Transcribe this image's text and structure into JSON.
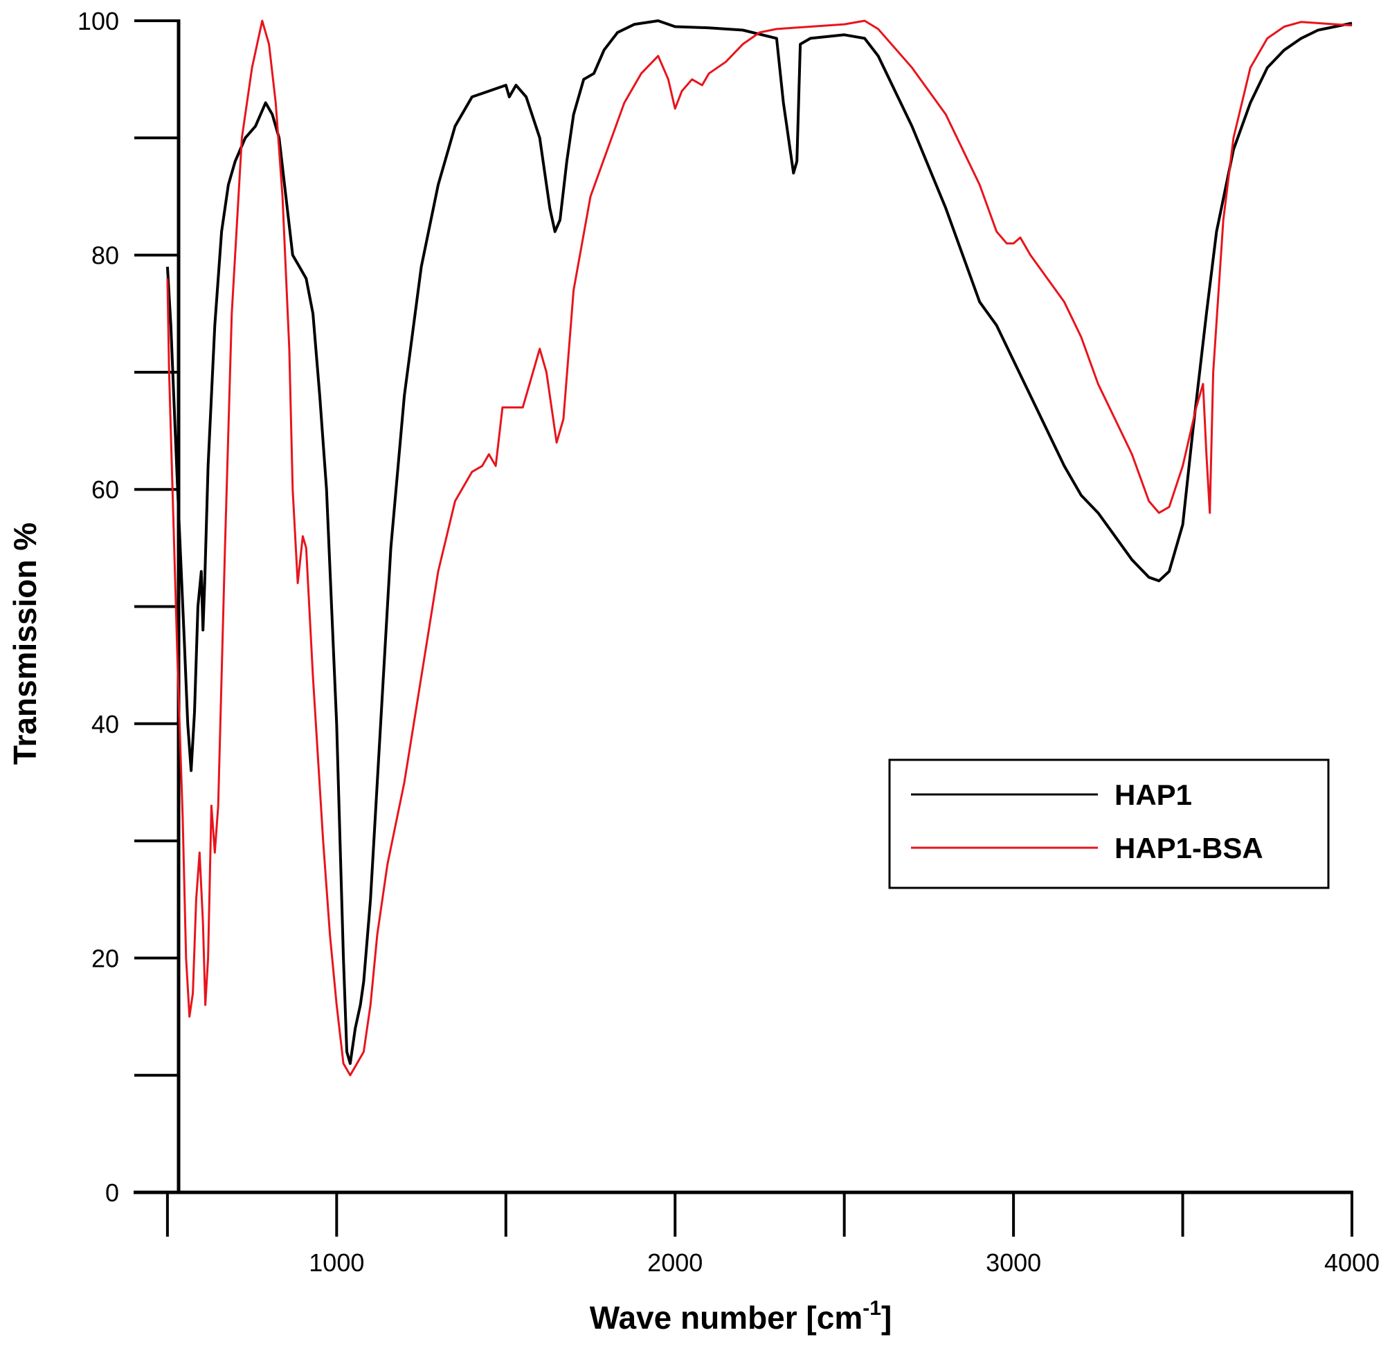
{
  "chart_data": {
    "type": "line",
    "xlabel": "Wave number [cm",
    "xlabel_sup": "-1",
    "xlabel_close": "]",
    "ylabel": "Transmission %",
    "xlim": [
      400,
      4000
    ],
    "ylim": [
      0,
      100
    ],
    "x_ticks": [
      500,
      1000,
      1500,
      2000,
      2500,
      3000,
      3500,
      4000
    ],
    "x_tick_labels": [
      "1000",
      "2000",
      "3000",
      "4000"
    ],
    "x_tick_label_values": [
      1000,
      2000,
      3000,
      4000
    ],
    "y_ticks": [
      0,
      10,
      20,
      30,
      40,
      50,
      60,
      70,
      80,
      90,
      100
    ],
    "y_tick_labels": [
      "0",
      "20",
      "40",
      "60",
      "80",
      "100"
    ],
    "y_tick_label_values": [
      0,
      20,
      40,
      60,
      80,
      100
    ],
    "grid": false,
    "legend_position": "right-middle",
    "series": [
      {
        "name": "HAP1",
        "color": "#000000",
        "points": [
          [
            500,
            79
          ],
          [
            510,
            74
          ],
          [
            530,
            60
          ],
          [
            550,
            47
          ],
          [
            560,
            40
          ],
          [
            570,
            36
          ],
          [
            580,
            41
          ],
          [
            590,
            50
          ],
          [
            600,
            53
          ],
          [
            605,
            48
          ],
          [
            610,
            52
          ],
          [
            620,
            62
          ],
          [
            640,
            74
          ],
          [
            660,
            82
          ],
          [
            680,
            86
          ],
          [
            700,
            88
          ],
          [
            730,
            90
          ],
          [
            760,
            91
          ],
          [
            790,
            93
          ],
          [
            810,
            92
          ],
          [
            830,
            90
          ],
          [
            850,
            85
          ],
          [
            870,
            80
          ],
          [
            890,
            79
          ],
          [
            910,
            78
          ],
          [
            930,
            75
          ],
          [
            950,
            68
          ],
          [
            970,
            60
          ],
          [
            985,
            50
          ],
          [
            1000,
            40
          ],
          [
            1010,
            30
          ],
          [
            1020,
            20
          ],
          [
            1030,
            12
          ],
          [
            1040,
            11
          ],
          [
            1055,
            14
          ],
          [
            1070,
            16
          ],
          [
            1080,
            18
          ],
          [
            1100,
            25
          ],
          [
            1130,
            40
          ],
          [
            1160,
            55
          ],
          [
            1200,
            68
          ],
          [
            1250,
            79
          ],
          [
            1300,
            86
          ],
          [
            1350,
            91
          ],
          [
            1400,
            93.5
          ],
          [
            1450,
            94
          ],
          [
            1500,
            94.5
          ],
          [
            1510,
            93.5
          ],
          [
            1530,
            94.5
          ],
          [
            1560,
            93.5
          ],
          [
            1600,
            90
          ],
          [
            1630,
            84
          ],
          [
            1645,
            82
          ],
          [
            1660,
            83
          ],
          [
            1680,
            88
          ],
          [
            1700,
            92
          ],
          [
            1730,
            95
          ],
          [
            1760,
            95.5
          ],
          [
            1790,
            97.5
          ],
          [
            1830,
            99
          ],
          [
            1880,
            99.7
          ],
          [
            1950,
            100
          ],
          [
            2000,
            99.5
          ],
          [
            2100,
            99.4
          ],
          [
            2200,
            99.2
          ],
          [
            2300,
            98.5
          ],
          [
            2320,
            93
          ],
          [
            2330,
            91
          ],
          [
            2340,
            89
          ],
          [
            2350,
            87
          ],
          [
            2360,
            88
          ],
          [
            2370,
            98
          ],
          [
            2400,
            98.5
          ],
          [
            2500,
            98.8
          ],
          [
            2560,
            98.5
          ],
          [
            2600,
            97
          ],
          [
            2700,
            91
          ],
          [
            2800,
            84
          ],
          [
            2900,
            76
          ],
          [
            2950,
            74
          ],
          [
            3000,
            71
          ],
          [
            3050,
            68
          ],
          [
            3100,
            65
          ],
          [
            3150,
            62
          ],
          [
            3200,
            59.5
          ],
          [
            3250,
            58
          ],
          [
            3300,
            56
          ],
          [
            3350,
            54
          ],
          [
            3400,
            52.5
          ],
          [
            3430,
            52.2
          ],
          [
            3460,
            53
          ],
          [
            3500,
            57
          ],
          [
            3530,
            65
          ],
          [
            3570,
            75
          ],
          [
            3600,
            82
          ],
          [
            3650,
            89
          ],
          [
            3700,
            93
          ],
          [
            3750,
            96
          ],
          [
            3800,
            97.5
          ],
          [
            3850,
            98.5
          ],
          [
            3900,
            99.2
          ],
          [
            3950,
            99.5
          ],
          [
            4000,
            99.8
          ]
        ]
      },
      {
        "name": "HAP1-BSA",
        "color": "#e8141c",
        "points": [
          [
            500,
            78
          ],
          [
            505,
            70
          ],
          [
            515,
            60
          ],
          [
            530,
            45
          ],
          [
            545,
            32
          ],
          [
            555,
            20
          ],
          [
            565,
            15
          ],
          [
            575,
            17
          ],
          [
            585,
            25
          ],
          [
            595,
            29
          ],
          [
            605,
            23
          ],
          [
            612,
            16
          ],
          [
            620,
            20
          ],
          [
            630,
            33
          ],
          [
            640,
            29
          ],
          [
            650,
            33
          ],
          [
            670,
            55
          ],
          [
            690,
            75
          ],
          [
            720,
            90
          ],
          [
            750,
            96
          ],
          [
            780,
            100
          ],
          [
            800,
            98
          ],
          [
            820,
            93
          ],
          [
            840,
            85
          ],
          [
            860,
            72
          ],
          [
            870,
            60
          ],
          [
            885,
            52
          ],
          [
            900,
            56
          ],
          [
            910,
            55
          ],
          [
            930,
            44
          ],
          [
            960,
            30
          ],
          [
            980,
            22
          ],
          [
            1000,
            16
          ],
          [
            1020,
            11
          ],
          [
            1040,
            10
          ],
          [
            1060,
            11
          ],
          [
            1080,
            12
          ],
          [
            1100,
            16
          ],
          [
            1120,
            22
          ],
          [
            1150,
            28
          ],
          [
            1200,
            35
          ],
          [
            1250,
            44
          ],
          [
            1300,
            53
          ],
          [
            1350,
            59
          ],
          [
            1400,
            61.5
          ],
          [
            1430,
            62
          ],
          [
            1450,
            63
          ],
          [
            1470,
            62
          ],
          [
            1490,
            67
          ],
          [
            1550,
            67
          ],
          [
            1580,
            70
          ],
          [
            1600,
            72
          ],
          [
            1620,
            70
          ],
          [
            1650,
            64
          ],
          [
            1670,
            66
          ],
          [
            1700,
            77
          ],
          [
            1750,
            85
          ],
          [
            1800,
            89
          ],
          [
            1850,
            93
          ],
          [
            1900,
            95.5
          ],
          [
            1950,
            97
          ],
          [
            1980,
            95
          ],
          [
            2000,
            92.5
          ],
          [
            2020,
            94
          ],
          [
            2050,
            95
          ],
          [
            2080,
            94.5
          ],
          [
            2100,
            95.5
          ],
          [
            2150,
            96.5
          ],
          [
            2200,
            98
          ],
          [
            2250,
            99
          ],
          [
            2300,
            99.3
          ],
          [
            2400,
            99.5
          ],
          [
            2500,
            99.7
          ],
          [
            2560,
            100
          ],
          [
            2600,
            99.3
          ],
          [
            2700,
            96
          ],
          [
            2800,
            92
          ],
          [
            2900,
            86
          ],
          [
            2950,
            82
          ],
          [
            2980,
            81
          ],
          [
            3000,
            81
          ],
          [
            3020,
            81.5
          ],
          [
            3050,
            80
          ],
          [
            3100,
            78
          ],
          [
            3150,
            76
          ],
          [
            3200,
            73
          ],
          [
            3250,
            69
          ],
          [
            3300,
            66
          ],
          [
            3350,
            63
          ],
          [
            3400,
            59
          ],
          [
            3430,
            58
          ],
          [
            3460,
            58.5
          ],
          [
            3500,
            62
          ],
          [
            3540,
            67
          ],
          [
            3560,
            69
          ],
          [
            3570,
            63
          ],
          [
            3580,
            58
          ],
          [
            3590,
            70
          ],
          [
            3620,
            83
          ],
          [
            3650,
            90
          ],
          [
            3700,
            96
          ],
          [
            3750,
            98.5
          ],
          [
            3800,
            99.5
          ],
          [
            3850,
            99.9
          ],
          [
            3900,
            99.8
          ],
          [
            4000,
            99.6
          ]
        ]
      }
    ]
  }
}
